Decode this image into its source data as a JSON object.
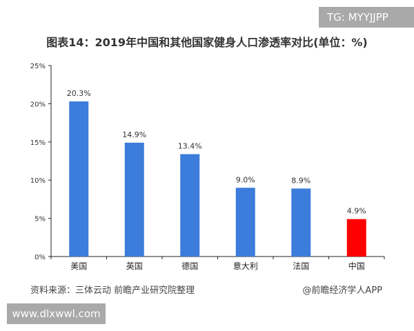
{
  "watermark_top": "TG: MYYJJPP",
  "watermark_bottom": "www.dlxwwl.com",
  "source": "资料来源：三体云动 前瞻产业研究院整理",
  "credit": "@前瞻经济学人APP",
  "chart_data": {
    "type": "bar",
    "title": "图表14：2019年中国和其他国家健身人口渗透率对比(单位：%)",
    "categories": [
      "美国",
      "英国",
      "德国",
      "意大利",
      "法国",
      "中国"
    ],
    "values": [
      20.3,
      14.9,
      13.4,
      9.0,
      8.9,
      4.9
    ],
    "data_labels": [
      "20.3%",
      "14.9%",
      "13.4%",
      "9.0%",
      "8.9%",
      "4.9%"
    ],
    "colors": [
      "#3c7ddb",
      "#3c7ddb",
      "#3c7ddb",
      "#3c7ddb",
      "#3c7ddb",
      "#ff0000"
    ],
    "ylim": [
      0,
      25
    ],
    "yticks": [
      "0%",
      "5%",
      "10%",
      "15%",
      "20%",
      "25%"
    ],
    "grid": false,
    "xlabel": "",
    "ylabel": ""
  }
}
